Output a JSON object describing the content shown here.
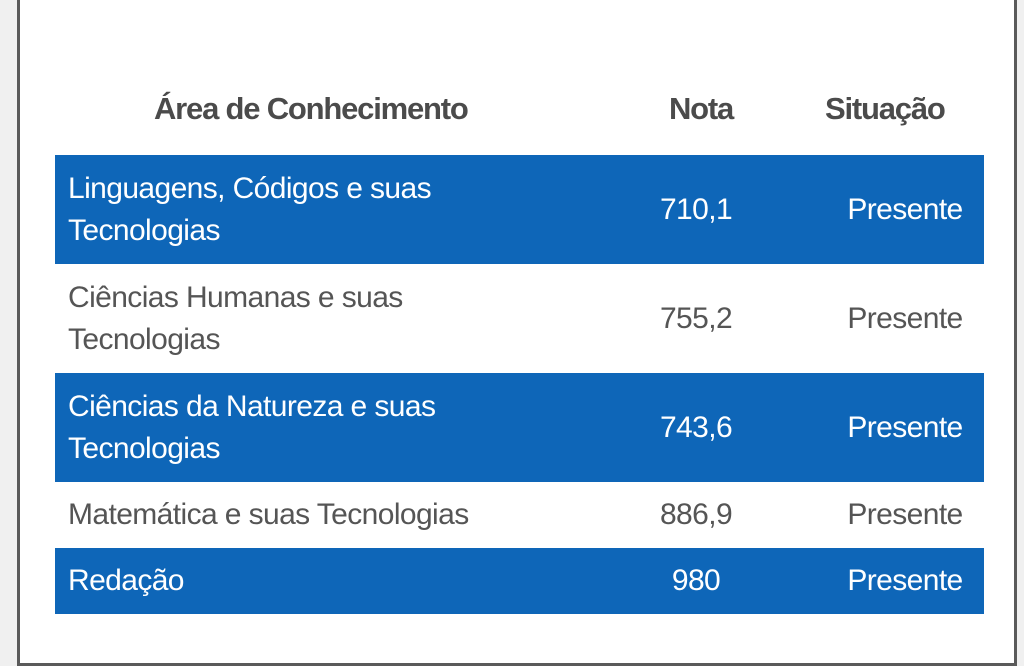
{
  "table": {
    "headers": {
      "area": "Área de Conhecimento",
      "nota": "Nota",
      "situacao": "Situação"
    },
    "rows": [
      {
        "area": "Linguagens, Códigos e suas Tecnologias",
        "nota": "710,1",
        "situacao": "Presente"
      },
      {
        "area": "Ciências Humanas e suas Tecnologias",
        "nota": "755,2",
        "situacao": "Presente"
      },
      {
        "area": "Ciências da Natureza e suas Tecnologias",
        "nota": "743,6",
        "situacao": "Presente"
      },
      {
        "area": "Matemática e suas Tecnologias",
        "nota": "886,9",
        "situacao": "Presente"
      },
      {
        "area": "Redação",
        "nota": "980",
        "situacao": "Presente"
      }
    ]
  },
  "colors": {
    "row_highlight": "#0e66b8",
    "text_dark": "#555555",
    "header_text": "#4b4b4b",
    "border": "#5a5a5a"
  }
}
